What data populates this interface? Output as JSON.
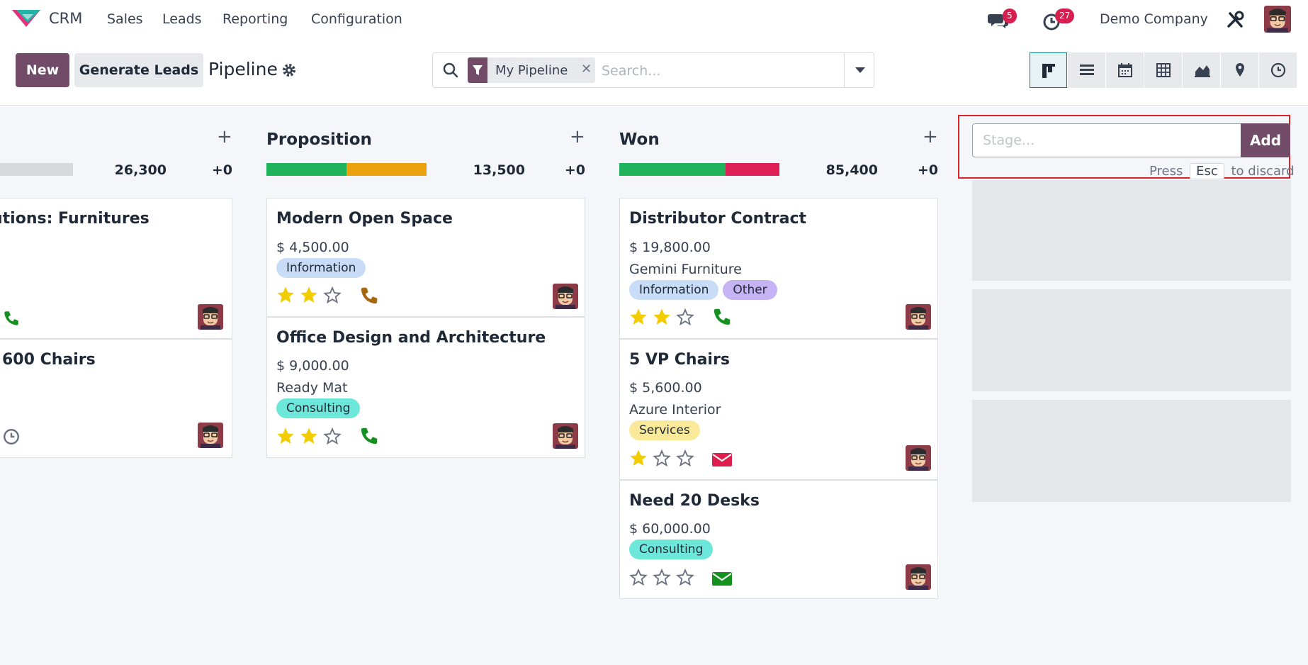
{
  "app": {
    "name": "CRM"
  },
  "nav": {
    "menus": [
      "Sales",
      "Leads",
      "Reporting",
      "Configuration"
    ],
    "company": "Demo Company"
  },
  "systray": {
    "messages_badge": "5",
    "activities_badge": "27"
  },
  "control": {
    "new_label": "New",
    "generate_label": "Generate Leads",
    "title": "Pipeline",
    "search": {
      "facet": "My Pipeline",
      "placeholder": "Search..."
    },
    "views": [
      "kanban-icon",
      "list-icon",
      "calendar-icon",
      "pivot-icon",
      "graph-icon",
      "map-icon",
      "activity-icon"
    ]
  },
  "columns": [
    {
      "title": "",
      "total": "26,300",
      "delta": "+0",
      "cards": [
        {
          "name": "utions: Furnitures",
          "activity": "phone"
        },
        {
          "name": "600 Chairs",
          "activity": "clock"
        }
      ]
    },
    {
      "title": "Proposition",
      "total": "13,500",
      "delta": "+0",
      "cards": [
        {
          "name": "Modern Open Space",
          "amount": "$ 4,500.00",
          "partner": "",
          "tags": [
            "Information"
          ],
          "stars": 2,
          "activity": "phone-warning"
        },
        {
          "name": "Office Design and Architecture",
          "amount": "$ 9,000.00",
          "partner": "Ready Mat",
          "tags": [
            "Consulting"
          ],
          "stars": 2,
          "activity": "phone"
        }
      ]
    },
    {
      "title": "Won",
      "total": "85,400",
      "delta": "+0",
      "cards": [
        {
          "name": "Distributor Contract",
          "amount": "$ 19,800.00",
          "partner": "Gemini Furniture",
          "tags": [
            "Information",
            "Other"
          ],
          "stars": 2,
          "activity": "phone"
        },
        {
          "name": "5 VP Chairs",
          "amount": "$ 5,600.00",
          "partner": "Azure Interior",
          "tags": [
            "Services"
          ],
          "stars": 1,
          "activity": "email-overdue"
        },
        {
          "name": "Need 20 Desks",
          "amount": "$ 60,000.00",
          "partner": "",
          "tags": [
            "Consulting"
          ],
          "stars": 0,
          "activity": "email"
        }
      ]
    }
  ],
  "add_stage": {
    "placeholder": "Stage...",
    "button": "Add",
    "hint_before": "Press",
    "hint_key": "Esc",
    "hint_after": "to discard"
  },
  "colors": {
    "brand": "#714b67",
    "tag_information": "#c9dcf7",
    "tag_other": "#c6b3f3",
    "tag_consulting": "#6ee7db",
    "tag_services": "#fbe99a",
    "progress_green": "#1fb35b",
    "progress_orange": "#eaa30e",
    "progress_red": "#de1f57",
    "progress_grey": "#d8d9dc"
  }
}
